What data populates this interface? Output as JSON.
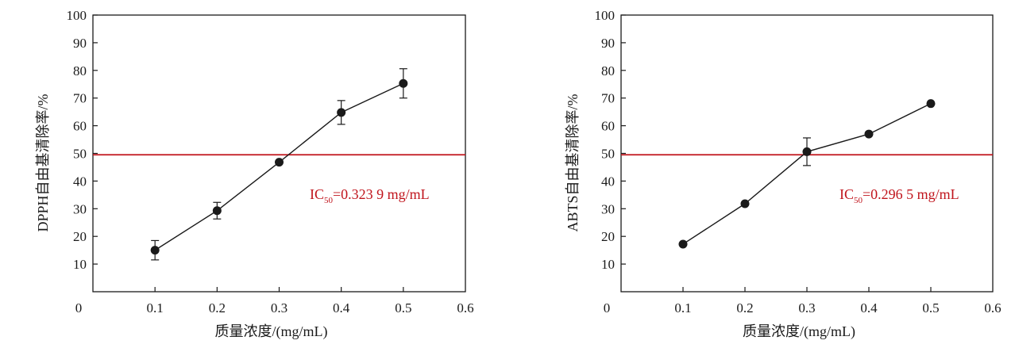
{
  "chart_data": [
    {
      "type": "line",
      "xlabel": "质量浓度/(mg/mL)",
      "ylabel": "DPPH自由基清除率/%",
      "xlim": [
        0,
        0.6
      ],
      "ylim": [
        0,
        100
      ],
      "x_ticks": [
        "0",
        "0.1",
        "0.2",
        "0.3",
        "0.4",
        "0.5",
        "0.6"
      ],
      "y_ticks": [
        "10",
        "20",
        "30",
        "40",
        "50",
        "60",
        "70",
        "80",
        "90",
        "100"
      ],
      "grid": false,
      "series": [
        {
          "x": [
            0.1,
            0.2,
            0.3,
            0.4,
            0.5
          ],
          "values": [
            15.0,
            29.3,
            46.8,
            64.8,
            75.3
          ],
          "error": [
            3.5,
            3.0,
            0,
            4.3,
            5.3
          ]
        }
      ],
      "reference_line": {
        "y": 49.5,
        "color": "#c0141c"
      },
      "annotation": {
        "prefix": "IC",
        "sub": "50",
        "value": "=0.323 9 mg/mL",
        "color": "#c0141c"
      }
    },
    {
      "type": "line",
      "xlabel": "质量浓度/(mg/mL)",
      "ylabel": "ABTS自由基清除率/%",
      "xlim": [
        0,
        0.6
      ],
      "ylim": [
        0,
        100
      ],
      "x_ticks": [
        "0",
        "0.1",
        "0.2",
        "0.3",
        "0.4",
        "0.5",
        "0.6"
      ],
      "y_ticks": [
        "10",
        "20",
        "30",
        "40",
        "50",
        "60",
        "70",
        "80",
        "90",
        "100"
      ],
      "grid": false,
      "series": [
        {
          "x": [
            0.1,
            0.2,
            0.3,
            0.4,
            0.5
          ],
          "values": [
            17.2,
            31.8,
            50.6,
            57.0,
            68.0
          ],
          "error": [
            0,
            0,
            5.0,
            0,
            0
          ]
        }
      ],
      "reference_line": {
        "y": 49.5,
        "color": "#c0141c"
      },
      "annotation": {
        "prefix": "IC",
        "sub": "50",
        "value": "=0.296 5 mg/mL",
        "color": "#c0141c"
      }
    }
  ]
}
